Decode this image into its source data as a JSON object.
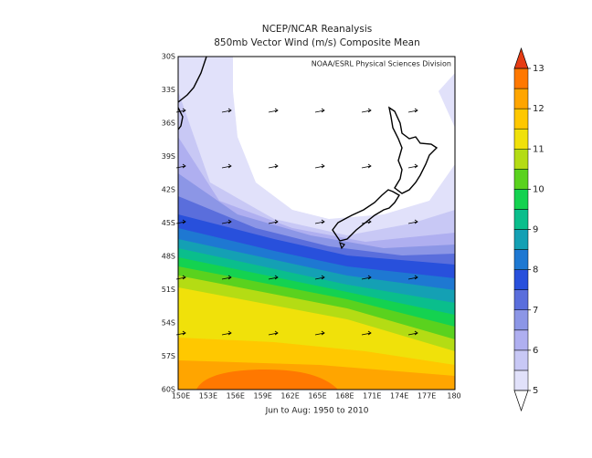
{
  "header": {
    "title": "NCEP/NCAR Reanalysis",
    "subtitle": "850mb Vector Wind (m/s) Composite Mean"
  },
  "map": {
    "credit": "NOAA/ESRL Physical Sciences Division",
    "lat_labels": [
      "30S",
      "33S",
      "36S",
      "39S",
      "42S",
      "45S",
      "48S",
      "51S",
      "54S",
      "57S",
      "60S"
    ],
    "lon_labels": [
      "150E",
      "153E",
      "156E",
      "159E",
      "162E",
      "165E",
      "168E",
      "171E",
      "174E",
      "177E",
      "180"
    ],
    "footer": "Jun to Aug: 1950 to 2010"
  },
  "colorbar": {
    "labels": [
      5,
      6,
      7,
      8,
      9,
      10,
      11,
      12,
      13
    ],
    "colors": [
      "#ffffff",
      "#e1e1fa",
      "#c8c8f5",
      "#afaff0",
      "#8c96e6",
      "#5a6edc",
      "#2850dc",
      "#1e78d2",
      "#14a0b4",
      "#0abe8c",
      "#14d250",
      "#5ad21e",
      "#b4dc14",
      "#f0e10a",
      "#ffc800",
      "#ffa500",
      "#ff7800",
      "#e63c14"
    ]
  }
}
